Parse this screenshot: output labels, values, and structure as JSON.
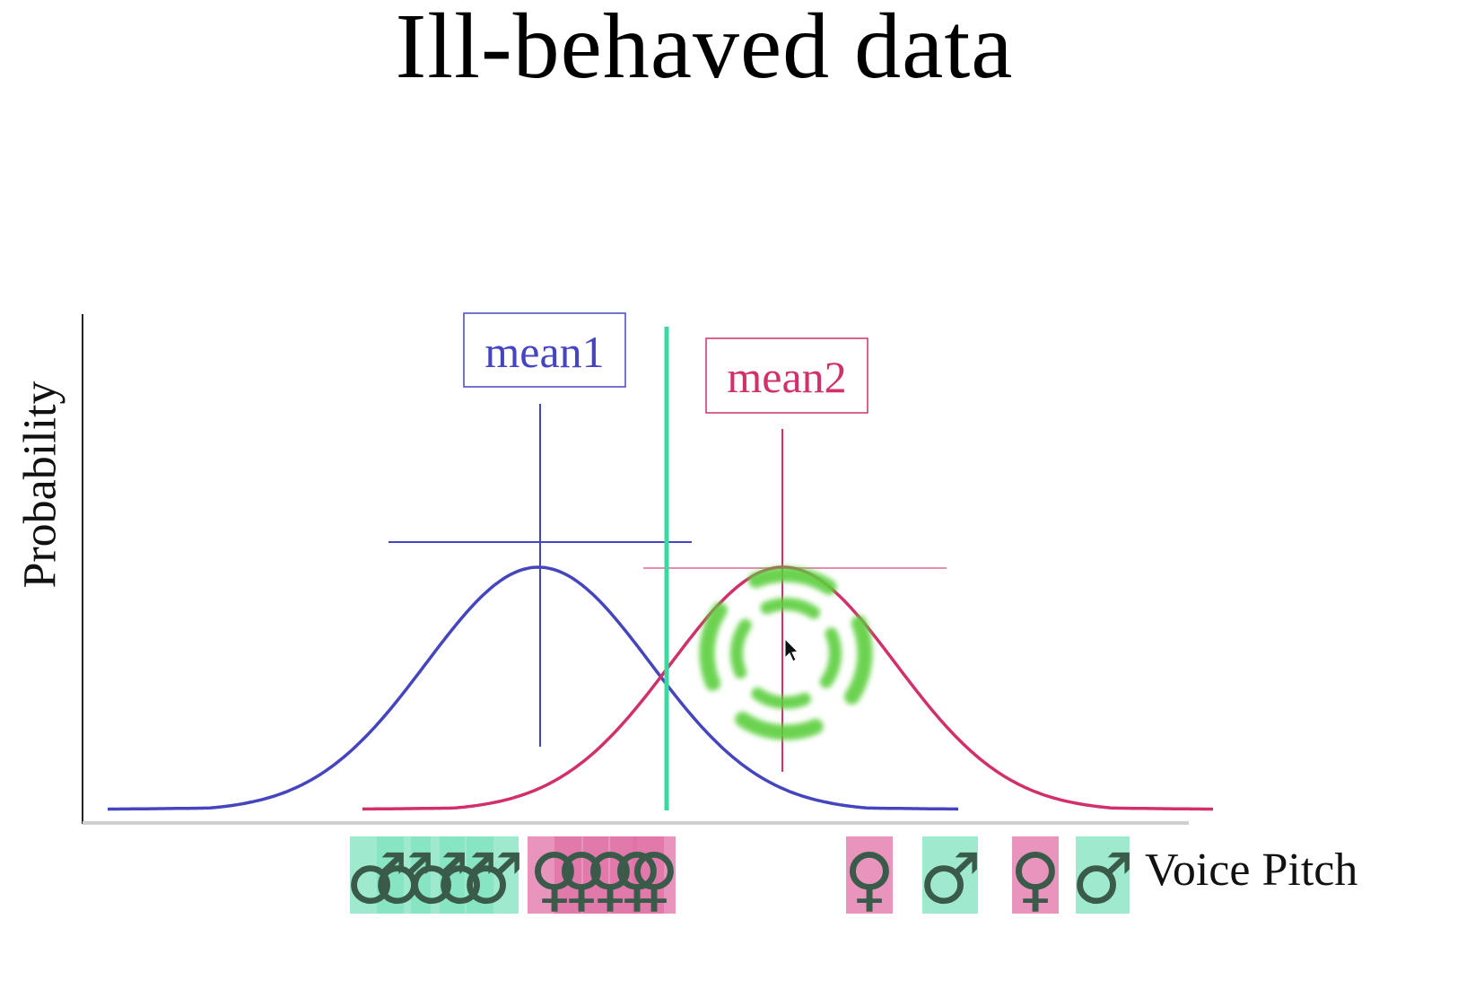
{
  "title": "Ill-behaved data",
  "axes": {
    "ylabel": "Probability",
    "xlabel": "Voice Pitch"
  },
  "means": [
    {
      "label": "mean1",
      "color": "#4545c0"
    },
    {
      "label": "mean2",
      "color": "#d1306a"
    }
  ],
  "colors": {
    "curve1": "#4545c0",
    "curve2": "#d1306a",
    "boundary": "#3fd7a0",
    "male_marker_bg": "#7fe3bf",
    "female_marker_bg": "#e070a6",
    "marker_glyph": "#3a5a4a",
    "highlight": "#5ccf3c"
  },
  "markers": {
    "symbols": {
      "male": "♂",
      "female": "♀"
    },
    "sequence": [
      "male",
      "male",
      "male",
      "male",
      "male",
      "female",
      "female",
      "female",
      "female",
      "female",
      "female",
      "male",
      "female",
      "male"
    ]
  },
  "icons": {
    "cursor": "pointer-cursor-icon",
    "highlight": "dashed-circle-highlight-icon"
  }
}
